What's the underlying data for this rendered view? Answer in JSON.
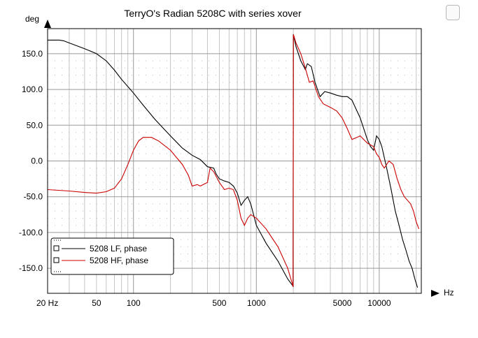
{
  "chart_data": {
    "type": "line",
    "title": "TerryO's Radian 5208C with series xover",
    "ylabel": "deg",
    "xlabel": "Hz",
    "xscale": "log",
    "xlim": [
      20,
      22000
    ],
    "ylim": [
      -185,
      185
    ],
    "grid": true,
    "legend_position": "bottom-left",
    "x_ticks": [
      {
        "value": 20,
        "label": "20 Hz"
      },
      {
        "value": 50,
        "label": "50"
      },
      {
        "value": 100,
        "label": "100"
      },
      {
        "value": 500,
        "label": "500"
      },
      {
        "value": 1000,
        "label": "1000"
      },
      {
        "value": 5000,
        "label": "5000"
      },
      {
        "value": 10000,
        "label": "10000"
      }
    ],
    "y_ticks": [
      {
        "value": 150,
        "label": "150.0"
      },
      {
        "value": 100,
        "label": "100.0"
      },
      {
        "value": 50,
        "label": "50.0"
      },
      {
        "value": 0,
        "label": "0.0"
      },
      {
        "value": -50,
        "label": "-50.0"
      },
      {
        "value": -100,
        "label": "-100.0"
      },
      {
        "value": -150,
        "label": "-150.0"
      }
    ],
    "series": [
      {
        "name": "5208 LF, phase",
        "color": "#000000",
        "points": [
          [
            20,
            169
          ],
          [
            25,
            169
          ],
          [
            27,
            168
          ],
          [
            30,
            165
          ],
          [
            40,
            157
          ],
          [
            50,
            150
          ],
          [
            60,
            140
          ],
          [
            70,
            127
          ],
          [
            80,
            114
          ],
          [
            100,
            95
          ],
          [
            120,
            78
          ],
          [
            150,
            58
          ],
          [
            200,
            35
          ],
          [
            250,
            18
          ],
          [
            300,
            8
          ],
          [
            350,
            2
          ],
          [
            400,
            -8
          ],
          [
            450,
            -10
          ],
          [
            470,
            -18
          ],
          [
            500,
            -25
          ],
          [
            550,
            -28
          ],
          [
            600,
            -30
          ],
          [
            650,
            -35
          ],
          [
            700,
            -45
          ],
          [
            750,
            -62
          ],
          [
            800,
            -55
          ],
          [
            850,
            -50
          ],
          [
            900,
            -60
          ],
          [
            1000,
            -90
          ],
          [
            1200,
            -115
          ],
          [
            1500,
            -140
          ],
          [
            1800,
            -165
          ],
          [
            1950,
            -173
          ],
          [
            1990,
            -175
          ],
          [
            2000,
            177
          ],
          [
            2100,
            160
          ],
          [
            2300,
            140
          ],
          [
            2500,
            128
          ],
          [
            2600,
            136
          ],
          [
            2800,
            132
          ],
          [
            3000,
            110
          ],
          [
            3300,
            90
          ],
          [
            3600,
            97
          ],
          [
            4000,
            95
          ],
          [
            4500,
            92
          ],
          [
            5000,
            90
          ],
          [
            5500,
            90
          ],
          [
            6000,
            85
          ],
          [
            7000,
            60
          ],
          [
            8000,
            30
          ],
          [
            8500,
            20
          ],
          [
            9000,
            15
          ],
          [
            9500,
            35
          ],
          [
            10000,
            30
          ],
          [
            10500,
            20
          ],
          [
            11500,
            -10
          ],
          [
            12500,
            -40
          ],
          [
            13500,
            -70
          ],
          [
            14500,
            -90
          ],
          [
            15500,
            -110
          ],
          [
            16500,
            -125
          ],
          [
            17500,
            -140
          ],
          [
            18500,
            -150
          ],
          [
            19500,
            -165
          ],
          [
            20500,
            -177
          ]
        ]
      },
      {
        "name": "5208 HF, phase",
        "color": "#cc0000",
        "points": [
          [
            20,
            -40
          ],
          [
            30,
            -42
          ],
          [
            40,
            -44
          ],
          [
            50,
            -45
          ],
          [
            60,
            -43
          ],
          [
            70,
            -38
          ],
          [
            80,
            -25
          ],
          [
            90,
            -5
          ],
          [
            100,
            15
          ],
          [
            110,
            28
          ],
          [
            120,
            33
          ],
          [
            140,
            33
          ],
          [
            160,
            28
          ],
          [
            200,
            15
          ],
          [
            250,
            -5
          ],
          [
            280,
            -20
          ],
          [
            300,
            -35
          ],
          [
            330,
            -33
          ],
          [
            350,
            -35
          ],
          [
            400,
            -30
          ],
          [
            420,
            -10
          ],
          [
            450,
            -15
          ],
          [
            500,
            -30
          ],
          [
            550,
            -40
          ],
          [
            600,
            -38
          ],
          [
            650,
            -40
          ],
          [
            700,
            -55
          ],
          [
            750,
            -80
          ],
          [
            800,
            -90
          ],
          [
            850,
            -80
          ],
          [
            900,
            -75
          ],
          [
            1000,
            -80
          ],
          [
            1200,
            -95
          ],
          [
            1500,
            -120
          ],
          [
            1800,
            -150
          ],
          [
            1950,
            -170
          ],
          [
            1990,
            -176
          ],
          [
            2000,
            177
          ],
          [
            2100,
            165
          ],
          [
            2300,
            150
          ],
          [
            2500,
            130
          ],
          [
            2700,
            110
          ],
          [
            2900,
            112
          ],
          [
            3200,
            90
          ],
          [
            3500,
            80
          ],
          [
            4000,
            75
          ],
          [
            4500,
            70
          ],
          [
            5000,
            60
          ],
          [
            5500,
            45
          ],
          [
            6000,
            30
          ],
          [
            7000,
            35
          ],
          [
            8000,
            25
          ],
          [
            9000,
            20
          ],
          [
            9500,
            10
          ],
          [
            10000,
            5
          ],
          [
            10500,
            -5
          ],
          [
            11000,
            -10
          ],
          [
            12000,
            0
          ],
          [
            13000,
            -5
          ],
          [
            14000,
            -25
          ],
          [
            15000,
            -40
          ],
          [
            16000,
            -50
          ],
          [
            17000,
            -55
          ],
          [
            18000,
            -60
          ],
          [
            19000,
            -70
          ],
          [
            20000,
            -85
          ],
          [
            21000,
            -95
          ]
        ]
      }
    ]
  }
}
